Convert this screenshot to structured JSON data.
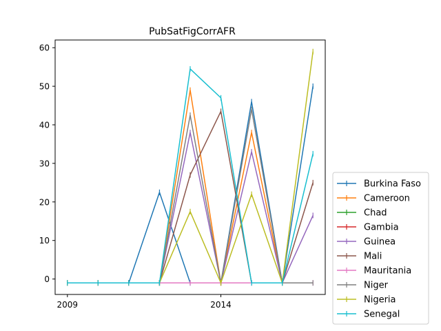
{
  "chart_data": {
    "type": "line",
    "title": "PubSatFigCorrAFR",
    "xlabel": "",
    "ylabel": "",
    "x": [
      2009,
      2010,
      2011,
      2012,
      2013,
      2014,
      2015,
      2016,
      2017
    ],
    "x_ticks": [
      2009,
      2014
    ],
    "y_ticks": [
      0,
      10,
      20,
      30,
      40,
      50,
      60
    ],
    "xlim": [
      2008.6,
      2017.4
    ],
    "ylim": [
      -4,
      62
    ],
    "legend_position": "lower-right-outside",
    "series": [
      {
        "name": "Burkina Faso",
        "color": "#1f77b4",
        "values": [
          -1,
          -1,
          -1,
          22.5,
          -1,
          -1,
          46,
          -1,
          50
        ]
      },
      {
        "name": "Cameroon",
        "color": "#ff7f0e",
        "values": [
          -1,
          -1,
          -1,
          -1,
          49,
          -1,
          38,
          -1,
          null
        ]
      },
      {
        "name": "Chad",
        "color": "#2ca02c",
        "values": [
          -1,
          -1,
          -1,
          -1,
          null,
          null,
          null,
          null,
          null
        ]
      },
      {
        "name": "Gambia",
        "color": "#d62728",
        "values": [
          -1,
          -1,
          -1,
          -1,
          null,
          null,
          null,
          null,
          null
        ]
      },
      {
        "name": "Guinea",
        "color": "#9467bd",
        "values": [
          -1,
          -1,
          -1,
          -1,
          38,
          -1,
          33,
          -1,
          16.5
        ]
      },
      {
        "name": "Mali",
        "color": "#8c564b",
        "values": [
          -1,
          -1,
          -1,
          -1,
          27,
          43.5,
          -1,
          -1,
          25
        ]
      },
      {
        "name": "Mauritania",
        "color": "#e377c2",
        "values": [
          -1,
          -1,
          -1,
          -1,
          -1,
          -1,
          -1,
          -1,
          -1
        ]
      },
      {
        "name": "Niger",
        "color": "#7f7f7f",
        "values": [
          -1,
          -1,
          -1,
          -1,
          42.5,
          -1,
          44,
          -1,
          -1
        ]
      },
      {
        "name": "Nigeria",
        "color": "#bcbd22",
        "values": [
          -1,
          -1,
          -1,
          -1,
          17.5,
          -1,
          22,
          -1,
          59
        ]
      },
      {
        "name": "Senegal",
        "color": "#17becf",
        "values": [
          -1,
          -1,
          -1,
          -1,
          54.5,
          47,
          -1,
          -1,
          32.5
        ]
      }
    ]
  }
}
